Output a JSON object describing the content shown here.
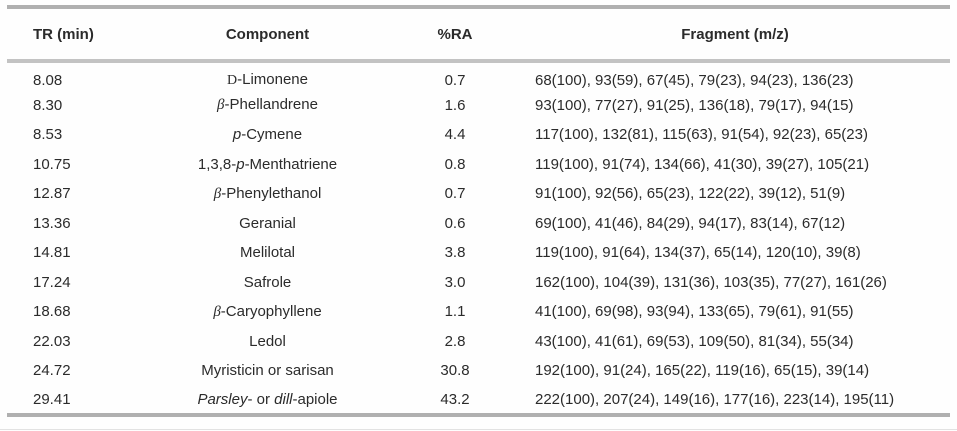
{
  "colors": {
    "rule_outer": "#b0b0b0",
    "rule_header": "#c3c3c3",
    "text": "#2b2b2b",
    "background": "#fefefe"
  },
  "table": {
    "columns": [
      {
        "key": "tr",
        "label": "TR (min)"
      },
      {
        "key": "component",
        "label": "Component"
      },
      {
        "key": "ra",
        "label": "%RA"
      },
      {
        "key": "fragment",
        "label": "Fragment (m/z)"
      }
    ],
    "rows": [
      {
        "tr": "8.08",
        "component": [
          {
            "t": "D",
            "s": "sc"
          },
          {
            "t": "-Limonene"
          }
        ],
        "ra": "0.7",
        "fragment": "68(100), 93(59), 67(45), 79(23), 94(23), 136(23)"
      },
      {
        "tr": "8.30",
        "component": [
          {
            "t": "β",
            "s": "gk"
          },
          {
            "t": "-Phellandrene"
          }
        ],
        "ra": "1.6",
        "fragment": "93(100), 77(27), 91(25), 136(18), 79(17), 94(15)"
      },
      {
        "tr": "8.53",
        "component": [
          {
            "t": "p",
            "s": "it"
          },
          {
            "t": "-Cymene"
          }
        ],
        "ra": "4.4",
        "fragment": "117(100), 132(81), 115(63), 91(54), 92(23), 65(23)"
      },
      {
        "tr": "10.75",
        "component": [
          {
            "t": "1,3,8-"
          },
          {
            "t": "p",
            "s": "it"
          },
          {
            "t": "-Menthatriene"
          }
        ],
        "ra": "0.8",
        "fragment": "119(100), 91(74), 134(66), 41(30), 39(27), 105(21)"
      },
      {
        "tr": "12.87",
        "component": [
          {
            "t": "β",
            "s": "gk"
          },
          {
            "t": "-Phenylethanol"
          }
        ],
        "ra": "0.7",
        "fragment": "91(100), 92(56), 65(23), 122(22), 39(12), 51(9)"
      },
      {
        "tr": "13.36",
        "component": [
          {
            "t": "Geranial"
          }
        ],
        "ra": "0.6",
        "fragment": "69(100), 41(46), 84(29), 94(17), 83(14), 67(12)"
      },
      {
        "tr": "14.81",
        "component": [
          {
            "t": "Melilotal"
          }
        ],
        "ra": "3.8",
        "fragment": "119(100), 91(64), 134(37), 65(14), 120(10), 39(8)"
      },
      {
        "tr": "17.24",
        "component": [
          {
            "t": "Safrole"
          }
        ],
        "ra": "3.0",
        "fragment": "162(100), 104(39), 131(36), 103(35), 77(27), 161(26)"
      },
      {
        "tr": "18.68",
        "component": [
          {
            "t": "β",
            "s": "gk"
          },
          {
            "t": "-Caryophyllene"
          }
        ],
        "ra": "1.1",
        "fragment": "41(100), 69(98), 93(94), 133(65), 79(61), 91(55)"
      },
      {
        "tr": "22.03",
        "component": [
          {
            "t": "Ledol"
          }
        ],
        "ra": "2.8",
        "fragment": "43(100), 41(61), 69(53), 109(50), 81(34), 55(34)"
      },
      {
        "tr": "24.72",
        "component": [
          {
            "t": "Myristicin or sarisan"
          }
        ],
        "ra": "30.8",
        "fragment": "192(100), 91(24), 165(22), 119(16), 65(15), 39(14)"
      },
      {
        "tr": "29.41",
        "component": [
          {
            "t": "Parsley",
            "s": "it"
          },
          {
            "t": "- or "
          },
          {
            "t": "dill",
            "s": "it"
          },
          {
            "t": "-apiole"
          }
        ],
        "ra": "43.2",
        "fragment": "222(100), 207(24), 149(16), 177(16), 223(14), 195(11)"
      }
    ]
  }
}
